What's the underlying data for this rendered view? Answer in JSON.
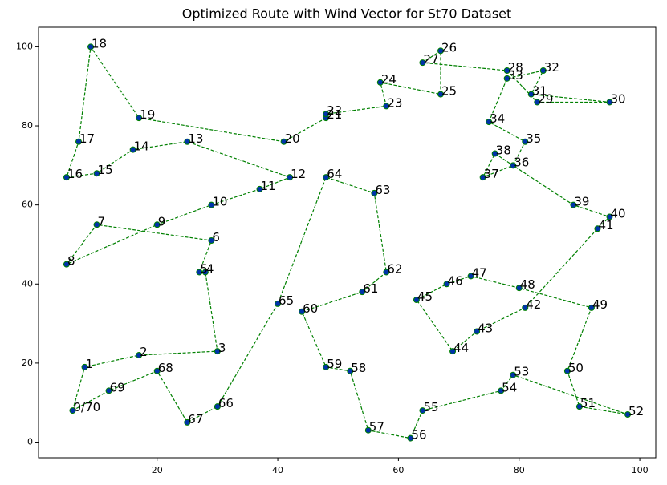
{
  "chart_data": {
    "type": "route",
    "title": "Optimized Route with Wind Vector for St70 Dataset",
    "labels": [
      "0/70",
      "1",
      "2",
      "3",
      "4",
      "5",
      "6",
      "7",
      "8",
      "9",
      "10",
      "11",
      "12",
      "13",
      "14",
      "15",
      "16",
      "17",
      "18",
      "19",
      "20",
      "21",
      "22",
      "23",
      "24",
      "25",
      "26",
      "27",
      "28",
      "29",
      "30",
      "31",
      "32",
      "33",
      "34",
      "35",
      "36",
      "37",
      "38",
      "39",
      "40",
      "41",
      "42",
      "43",
      "44",
      "45",
      "46",
      "47",
      "48",
      "49",
      "50",
      "51",
      "52",
      "53",
      "54",
      "55",
      "56",
      "57",
      "58",
      "59",
      "60",
      "61",
      "62",
      "63",
      "64",
      "65",
      "66",
      "67",
      "68",
      "69"
    ],
    "x": [
      6,
      8,
      17,
      30,
      28,
      27,
      29,
      10,
      5,
      20,
      29,
      37,
      42,
      25,
      16,
      10,
      5,
      7,
      9,
      17,
      41,
      48,
      48,
      58,
      57,
      67,
      67,
      64,
      78,
      83,
      95,
      82,
      84,
      78,
      75,
      81,
      79,
      74,
      76,
      89,
      95,
      93,
      81,
      73,
      69,
      63,
      68,
      72,
      80,
      92,
      88,
      90,
      98,
      79,
      77,
      64,
      62,
      55,
      52,
      48,
      44,
      54,
      58,
      56,
      48,
      40,
      30,
      25,
      20,
      12
    ],
    "y": [
      8,
      19,
      22,
      23,
      43,
      43,
      51,
      55,
      45,
      55,
      60,
      64,
      67,
      76,
      74,
      68,
      67,
      76,
      100,
      82,
      76,
      82,
      83,
      85,
      91,
      88,
      99,
      96,
      94,
      86,
      86,
      88,
      94,
      92,
      81,
      76,
      70,
      67,
      73,
      60,
      57,
      54,
      34,
      28,
      23,
      36,
      40,
      42,
      39,
      34,
      18,
      9,
      7,
      17,
      13,
      8,
      1,
      3,
      18,
      19,
      33,
      38,
      43,
      63,
      67,
      35,
      9,
      5,
      18,
      13
    ],
    "line_color": "#008000",
    "marker_color": "#0033aa",
    "marker_edge": "#008000",
    "xlim": [
      0.35,
      102.65
    ],
    "ylim": [
      -3.95,
      104.95
    ],
    "xticks": [
      20,
      40,
      60,
      80,
      100
    ],
    "yticks": [
      0,
      20,
      40,
      60,
      80,
      100
    ]
  }
}
